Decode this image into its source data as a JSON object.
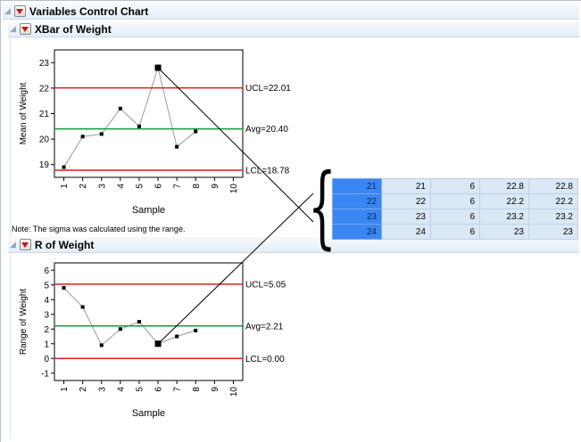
{
  "outline": {
    "root": {
      "title": "Variables Control Chart"
    },
    "xbar": {
      "title": "XBar of Weight"
    },
    "r": {
      "title": "R of Weight"
    }
  },
  "note": "Note: The sigma was calculated using the range.",
  "annotations": {
    "brace": "{"
  },
  "colors": {
    "control_limit_red": "#e01f1f",
    "avg_green": "#0c9f35",
    "series_gray": "#9a9a9a",
    "point_black": "#000000",
    "selected_row_blue": "#3a86f2",
    "row_cell_blue": "#dae7f5"
  },
  "chart_data": [
    {
      "id": "xbar",
      "type": "line",
      "title": "XBar of Weight",
      "xlabel": "Sample",
      "ylabel": "Mean of Weight",
      "x": [
        1,
        2,
        3,
        4,
        5,
        6,
        7,
        8
      ],
      "values": [
        18.9,
        20.1,
        20.2,
        21.2,
        20.5,
        22.8,
        19.7,
        20.3
      ],
      "selected_sample": 6,
      "xlim": [
        0.5,
        10.5
      ],
      "ylim": [
        18.5,
        23.5
      ],
      "yticks": [
        19,
        20,
        21,
        22,
        23
      ],
      "xticks": [
        1,
        2,
        3,
        4,
        5,
        6,
        7,
        8,
        9,
        10
      ],
      "series_color": "#9a9a9a",
      "lines": [
        {
          "label": "UCL=22.01",
          "value": 22.01,
          "color": "#e01f1f"
        },
        {
          "label": "Avg=20.40",
          "value": 20.4,
          "color": "#0c9f35"
        },
        {
          "label": "LCL=18.78",
          "value": 18.78,
          "color": "#e01f1f"
        }
      ]
    },
    {
      "id": "r",
      "type": "line",
      "title": "R of Weight",
      "xlabel": "Sample",
      "ylabel": "Range of Weight",
      "x": [
        1,
        2,
        3,
        4,
        5,
        6,
        7,
        8
      ],
      "values": [
        4.8,
        3.5,
        0.9,
        2.0,
        2.5,
        1.0,
        1.5,
        1.9
      ],
      "selected_sample": 6,
      "xlim": [
        0.5,
        10.5
      ],
      "ylim": [
        -1.5,
        6.5
      ],
      "yticks": [
        -1,
        0,
        1,
        2,
        3,
        4,
        5,
        6
      ],
      "xticks": [
        1,
        2,
        3,
        4,
        5,
        6,
        7,
        8,
        9,
        10
      ],
      "series_color": "#9a9a9a",
      "lines": [
        {
          "label": "UCL=5.05",
          "value": 5.05,
          "color": "#e01f1f"
        },
        {
          "label": "Avg=2.21",
          "value": 2.21,
          "color": "#0c9f35"
        },
        {
          "label": "LCL=0.00",
          "value": 0.0,
          "color": "#e01f1f"
        }
      ]
    }
  ],
  "table": {
    "rows": [
      {
        "row": "21",
        "cells": [
          "21",
          "6",
          "22.8",
          "22.8"
        ]
      },
      {
        "row": "22",
        "cells": [
          "22",
          "6",
          "22.2",
          "22.2"
        ]
      },
      {
        "row": "23",
        "cells": [
          "23",
          "6",
          "23.2",
          "23.2"
        ]
      },
      {
        "row": "24",
        "cells": [
          "24",
          "6",
          "23",
          "23"
        ]
      }
    ]
  }
}
